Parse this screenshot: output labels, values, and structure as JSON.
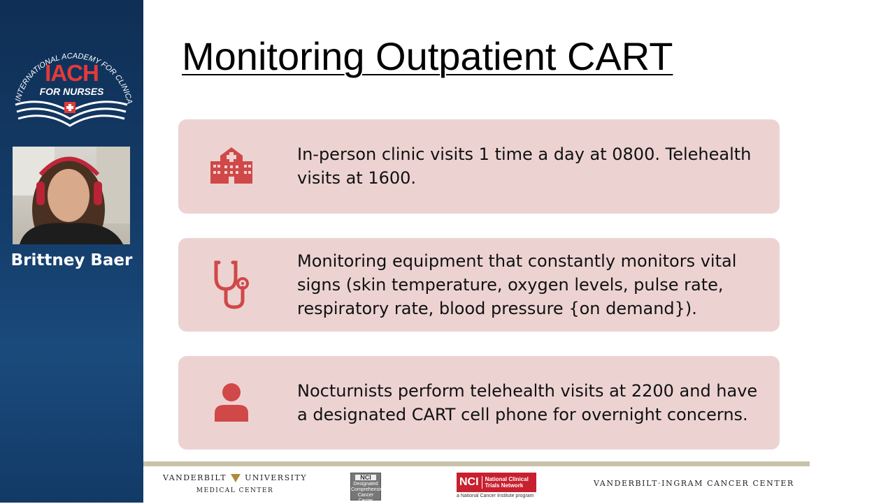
{
  "sidebar": {
    "logo": {
      "arc_text": "INTERNATIONAL ACADEMY FOR CLINICAL HEMATOLOGY",
      "title": "IACH",
      "subtitle": "FOR NURSES"
    },
    "presenter_name": "Brittney Baer"
  },
  "slide": {
    "title": "Monitoring Outpatient CART",
    "cards": [
      {
        "icon": "hospital-icon",
        "text_line1": "In-person clinic visits 1 time a day at 0800. Telehealth",
        "text_line2": "visits at 1600."
      },
      {
        "icon": "stethoscope-icon",
        "text_line1": "Monitoring equipment that constantly monitors vital",
        "text_line2": "signs (skin temperature, oxygen levels, pulse rate,",
        "text_line3": "respiratory rate, blood pressure {on demand})."
      },
      {
        "icon": "person-icon",
        "text_line1": "Nocturnists perform telehealth visits at 2200 and have",
        "text_line2": "a designated CART cell phone for overnight concerns."
      }
    ],
    "accent_color": "#d04848",
    "card_color": "#ecd3d2"
  },
  "footer": {
    "vu_line1_left": "VANDERBILT",
    "vu_line1_right": "UNIVERSITY",
    "vu_line2": "MEDICAL CENTER",
    "nci_badge_head": "NCI",
    "nci_badge_l1": "Designated",
    "nci_badge_l2": "Comprehensive",
    "nci_badge_l3": "Cancer Center",
    "nctn_nci": "NCI",
    "nctn_l1": "National Clinical",
    "nctn_l2": "Trials Network",
    "nctn_sub": "a National Cancer Institute program",
    "vicc": "VANDERBILT·INGRAM CANCER CENTER"
  }
}
